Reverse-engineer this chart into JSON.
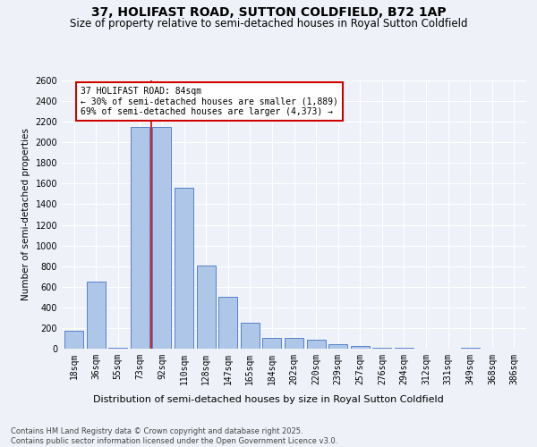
{
  "title": "37, HOLIFAST ROAD, SUTTON COLDFIELD, B72 1AP",
  "subtitle": "Size of property relative to semi-detached houses in Royal Sutton Coldfield",
  "xlabel": "Distribution of semi-detached houses by size in Royal Sutton Coldfield",
  "ylabel": "Number of semi-detached properties",
  "categories": [
    "18sqm",
    "36sqm",
    "55sqm",
    "73sqm",
    "92sqm",
    "110sqm",
    "128sqm",
    "147sqm",
    "165sqm",
    "184sqm",
    "202sqm",
    "220sqm",
    "239sqm",
    "257sqm",
    "276sqm",
    "294sqm",
    "312sqm",
    "331sqm",
    "349sqm",
    "368sqm",
    "386sqm"
  ],
  "values": [
    170,
    650,
    5,
    2150,
    2150,
    1560,
    810,
    500,
    250,
    100,
    100,
    85,
    40,
    25,
    5,
    5,
    0,
    0,
    5,
    0,
    0
  ],
  "bar_color": "#aec6e8",
  "bar_edge_color": "#4472c4",
  "annotation_text": "37 HOLIFAST ROAD: 84sqm\n← 30% of semi-detached houses are smaller (1,889)\n69% of semi-detached houses are larger (4,373) →",
  "annotation_box_color": "#ffffff",
  "annotation_box_edge_color": "#cc0000",
  "line_color": "#cc0000",
  "ylim": [
    0,
    2600
  ],
  "yticks": [
    0,
    200,
    400,
    600,
    800,
    1000,
    1200,
    1400,
    1600,
    1800,
    2000,
    2200,
    2400,
    2600
  ],
  "background_color": "#eef2f8",
  "footer_text": "Contains HM Land Registry data © Crown copyright and database right 2025.\nContains public sector information licensed under the Open Government Licence v3.0.",
  "title_fontsize": 10,
  "subtitle_fontsize": 8.5,
  "xlabel_fontsize": 8,
  "ylabel_fontsize": 7.5,
  "annotation_fontsize": 7,
  "footer_fontsize": 6,
  "tick_fontsize": 7
}
